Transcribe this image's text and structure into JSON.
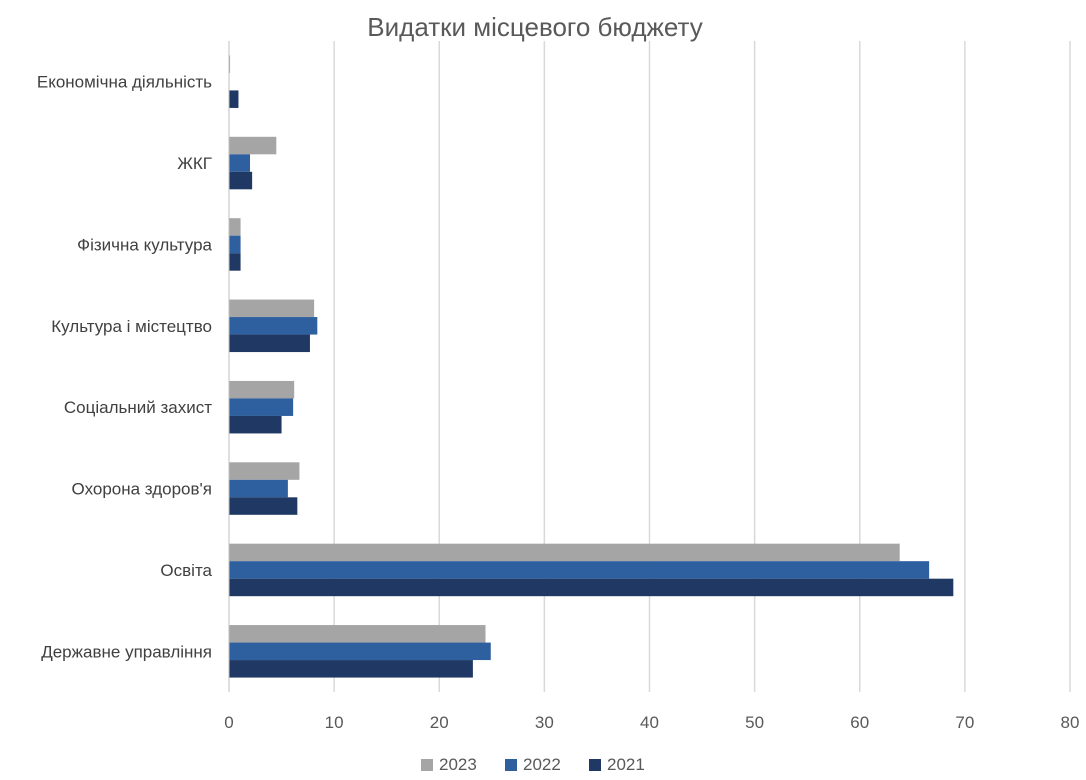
{
  "chart_data": {
    "type": "bar",
    "orientation": "horizontal",
    "title": "Видатки місцевого бюджету",
    "categories": [
      "Економічна діяльність",
      "ЖКГ",
      "Фізична культура",
      "Культура і містецтво",
      "Соціальний захист",
      "Охорона  здоров'я",
      "Освіта",
      "Державне управління"
    ],
    "series": [
      {
        "name": "2023",
        "color": "#a5a5a5",
        "values": [
          0.1,
          4.5,
          1.1,
          8.1,
          6.2,
          6.7,
          63.8,
          24.4
        ]
      },
      {
        "name": "2022",
        "color": "#2e5f9e",
        "values": [
          0.0,
          2.0,
          1.1,
          8.4,
          6.1,
          5.6,
          66.6,
          24.9
        ]
      },
      {
        "name": "2021",
        "color": "#1f3864",
        "values": [
          0.9,
          2.2,
          1.1,
          7.7,
          5.0,
          6.5,
          68.9,
          23.2
        ]
      }
    ],
    "xlim": [
      0,
      80
    ],
    "xticks": [
      "0",
      "10",
      "20",
      "30",
      "40",
      "50",
      "60",
      "70",
      "80"
    ],
    "grid": "vertical",
    "legend": {
      "position": "bottom",
      "order": [
        "2023",
        "2022",
        "2021"
      ]
    }
  }
}
